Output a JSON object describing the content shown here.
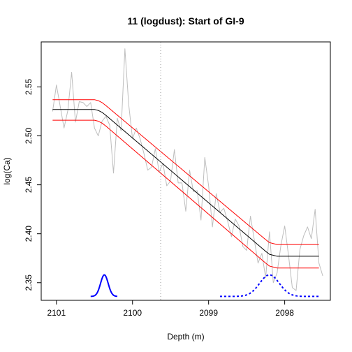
{
  "chart_data": {
    "type": "line",
    "title": "11 (logdust): Start of GI-9",
    "xlabel": "Depth (m)",
    "ylabel": "log(Ca)",
    "x_reversed": true,
    "xlim": [
      2101.2,
      2097.4
    ],
    "ylim": [
      2.332,
      2.596
    ],
    "x_ticks": [
      2101,
      2100,
      2099,
      2098
    ],
    "y_ticks": [
      2.35,
      2.4,
      2.45,
      2.5,
      2.55
    ],
    "x_tick_labels": [
      "2101",
      "2100",
      "2099",
      "2098"
    ],
    "y_tick_labels": [
      "2.35",
      "2.40",
      "2.45",
      "2.50",
      "2.55"
    ],
    "vertical_line": {
      "x": 2099.63,
      "style": "dotted",
      "color": "#999999"
    },
    "colors": {
      "data": "#bebebe",
      "fit": "#000000",
      "band": "#ff0000",
      "onset_density": "#0000ff",
      "end_density": "#0000ff"
    },
    "observed": {
      "x": [
        2101.05,
        2101.0,
        2100.95,
        2100.9,
        2100.85,
        2100.8,
        2100.75,
        2100.7,
        2100.65,
        2100.6,
        2100.55,
        2100.5,
        2100.45,
        2100.4,
        2100.35,
        2100.3,
        2100.25,
        2100.2,
        2100.15,
        2100.1,
        2100.05,
        2100.0,
        2099.95,
        2099.9,
        2099.85,
        2099.8,
        2099.75,
        2099.7,
        2099.65,
        2099.6,
        2099.55,
        2099.5,
        2099.45,
        2099.4,
        2099.35,
        2099.3,
        2099.25,
        2099.2,
        2099.15,
        2099.1,
        2099.05,
        2099.0,
        2098.95,
        2098.9,
        2098.85,
        2098.8,
        2098.75,
        2098.7,
        2098.65,
        2098.6,
        2098.55,
        2098.5,
        2098.45,
        2098.4,
        2098.35,
        2098.3,
        2098.25,
        2098.2,
        2098.15,
        2098.1,
        2098.05,
        2098.0,
        2097.95,
        2097.9,
        2097.85,
        2097.8,
        2097.75,
        2097.7,
        2097.65,
        2097.6,
        2097.55,
        2097.5
      ],
      "y": [
        2.525,
        2.552,
        2.53,
        2.508,
        2.526,
        2.565,
        2.514,
        2.535,
        2.534,
        2.53,
        2.534,
        2.508,
        2.5,
        2.515,
        2.52,
        2.511,
        2.462,
        2.518,
        2.505,
        2.589,
        2.532,
        2.497,
        2.508,
        2.497,
        2.482,
        2.465,
        2.468,
        2.487,
        2.463,
        2.472,
        2.449,
        2.454,
        2.486,
        2.452,
        2.452,
        2.423,
        2.465,
        2.443,
        2.444,
        2.414,
        2.478,
        2.449,
        2.407,
        2.441,
        2.422,
        2.426,
        2.413,
        2.397,
        2.415,
        2.408,
        2.387,
        2.383,
        2.418,
        2.394,
        2.37,
        2.38,
        2.355,
        2.402,
        2.35,
        2.36,
        2.388,
        2.408,
        2.378,
        2.345,
        2.342,
        2.384,
        2.398,
        2.407,
        2.395,
        2.425,
        2.37,
        2.357
      ]
    },
    "fit": {
      "x": [
        2101.05,
        2100.5,
        2100.45,
        2100.4,
        2100.35,
        2098.25,
        2098.2,
        2098.15,
        2098.1,
        2097.55
      ],
      "y": [
        2.527,
        2.527,
        2.526,
        2.524,
        2.521,
        2.382,
        2.379,
        2.378,
        2.377,
        2.377
      ]
    },
    "band_upper": {
      "x": [
        2101.05,
        2100.5,
        2100.45,
        2100.4,
        2100.35,
        2098.25,
        2098.2,
        2098.15,
        2098.1,
        2097.55
      ],
      "y": [
        2.537,
        2.537,
        2.536,
        2.534,
        2.531,
        2.394,
        2.391,
        2.39,
        2.389,
        2.389
      ]
    },
    "band_lower": {
      "x": [
        2101.05,
        2100.5,
        2100.45,
        2100.4,
        2100.35,
        2098.25,
        2098.2,
        2098.15,
        2098.1,
        2097.55
      ],
      "y": [
        2.516,
        2.516,
        2.515,
        2.513,
        2.51,
        2.37,
        2.367,
        2.366,
        2.365,
        2.365
      ]
    },
    "onset_density": {
      "center": 2100.37,
      "sd": 0.05,
      "range": [
        2100.55,
        2100.2
      ],
      "baseline": 2.336,
      "peak": 2.358,
      "style": "solid"
    },
    "end_density": {
      "center": 2098.2,
      "sd": 0.13,
      "range": [
        2098.85,
        2097.55
      ],
      "baseline": 2.336,
      "peak": 2.358,
      "style": "dashed"
    }
  }
}
